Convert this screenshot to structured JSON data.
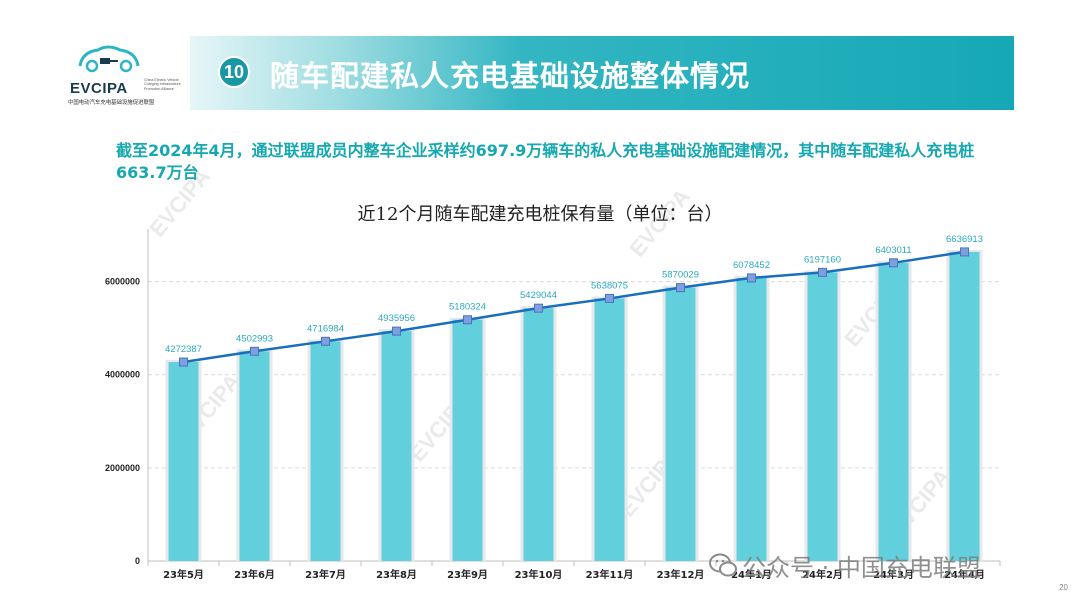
{
  "logo": {
    "name": "EVCIPA",
    "subtitle_en": "China Electric Vehicle Charging Infrastructure Promotion Alliance",
    "subtitle_cn": "中国电动汽车充电基础设施促进联盟"
  },
  "header": {
    "number": "10",
    "title": "随车配建私人充电基础设施整体情况"
  },
  "summary": "截至2024年4月，通过联盟成员内整车企业采样约697.9万辆车的私人充电基础设施配建情况，其中随车配建私人充电桩663.7万台",
  "watermark": "公众号 · 中国充电联盟",
  "page_number": "20",
  "chart_data": {
    "type": "bar",
    "title": "近12个月随车配建充电桩保有量（单位：台）",
    "categories": [
      "23年5月",
      "23年6月",
      "23年7月",
      "23年8月",
      "23年9月",
      "23年10月",
      "23年11月",
      "23年12月",
      "24年1月",
      "24年2月",
      "24年3月",
      "24年4月"
    ],
    "values": [
      4272387,
      4502993,
      4716984,
      4935956,
      5180324,
      5429044,
      5638075,
      5870029,
      6078452,
      6197160,
      6403011,
      6636913
    ],
    "overlay_line": true,
    "ylim": [
      0,
      7000000
    ],
    "yticks": [
      "0",
      "2000000",
      "4000000",
      "6000000"
    ],
    "grid": true,
    "colors": {
      "bar": "#62cfdc",
      "line": "#1b6ebd",
      "marker": "#7fa0dd",
      "label": "#2ba9bd"
    }
  }
}
